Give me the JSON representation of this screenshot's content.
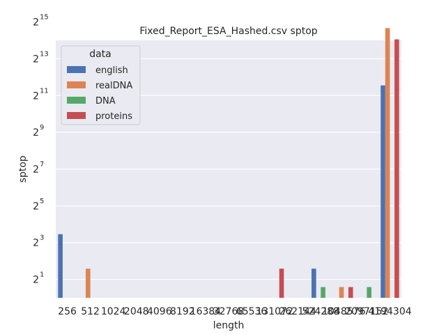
{
  "chart_data": {
    "type": "bar",
    "title": "Fixed_Report_ESA_Hashed.csv sptop",
    "xlabel": "length",
    "ylabel": "sptop",
    "y_scale": "log2",
    "ylim": [
      1,
      16384
    ],
    "yticks": [
      2,
      8,
      32,
      128,
      512,
      2048,
      8192,
      32768
    ],
    "ytick_labels": [
      {
        "base": "2",
        "exp": "1"
      },
      {
        "base": "2",
        "exp": "3"
      },
      {
        "base": "2",
        "exp": "5"
      },
      {
        "base": "2",
        "exp": "7"
      },
      {
        "base": "2",
        "exp": "9"
      },
      {
        "base": "2",
        "exp": "11"
      },
      {
        "base": "2",
        "exp": "13"
      },
      {
        "base": "2",
        "exp": "15"
      }
    ],
    "grid": true,
    "legend_placement": "top-left",
    "legend_title": "data",
    "categories": [
      "256",
      "512",
      "1024",
      "2048",
      "4096",
      "8192",
      "16384",
      "32768",
      "65536",
      "131072",
      "262144",
      "524288",
      "1048576",
      "2097152",
      "4194304"
    ],
    "series": [
      {
        "name": "english",
        "color": "#4c72b0",
        "values": [
          11,
          null,
          null,
          null,
          null,
          null,
          null,
          null,
          null,
          null,
          null,
          3,
          null,
          null,
          3000
        ]
      },
      {
        "name": "realDNA",
        "color": "#dd8452",
        "values": [
          null,
          3,
          null,
          null,
          null,
          null,
          null,
          null,
          null,
          null,
          null,
          null,
          1.5,
          null,
          26000
        ]
      },
      {
        "name": "DNA",
        "color": "#55a868",
        "values": [
          null,
          null,
          null,
          null,
          null,
          null,
          null,
          null,
          null,
          null,
          null,
          1.5,
          null,
          1.5,
          null
        ]
      },
      {
        "name": "proteins",
        "color": "#c44e52",
        "values": [
          null,
          null,
          null,
          null,
          null,
          null,
          null,
          null,
          null,
          3,
          null,
          null,
          1.5,
          null,
          17000
        ]
      }
    ]
  }
}
